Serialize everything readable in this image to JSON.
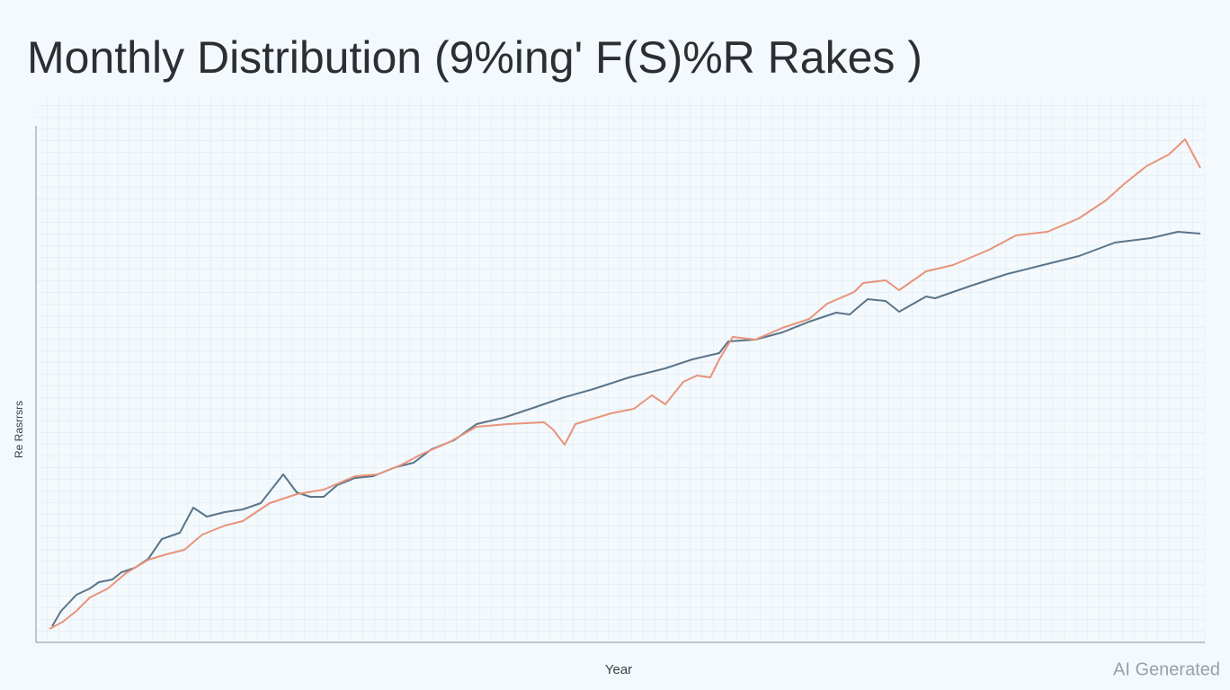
{
  "chart_data": {
    "type": "line",
    "title": "Monthly Distribution (9%ing' F(S)%R Rakes )",
    "x_label": "Year",
    "y_label": "Re Rasrrsrs",
    "watermark": "AI Generated",
    "xlim": [
      0,
      129.5
    ],
    "ylim": [
      0,
      113
    ],
    "grid": true,
    "series": [
      {
        "name": null,
        "color": "#5b7489",
        "x": [
          1.8,
          2.8,
          4.5,
          6,
          7,
          8.5,
          9.5,
          11,
          12.5,
          14,
          16,
          17.5,
          19,
          21,
          23,
          25,
          27.5,
          29,
          30.5,
          32,
          33.5,
          35.5,
          37.5,
          40,
          42,
          44,
          46.5,
          49,
          52,
          55,
          58.5,
          62,
          66,
          70,
          73,
          76,
          77,
          80,
          83,
          86,
          89,
          90.5,
          92.5,
          94.5,
          96,
          99,
          100,
          104,
          108,
          112,
          116,
          120,
          124,
          127,
          129.5
        ],
        "values": [
          3.6,
          7,
          10.6,
          12,
          13.4,
          14,
          15.6,
          16.6,
          18.6,
          23,
          24.4,
          30,
          28,
          29,
          29.6,
          31,
          37.4,
          33.4,
          32.4,
          32.4,
          35,
          36.6,
          37,
          39,
          40,
          43,
          45,
          48.6,
          50,
          52,
          54.4,
          56.4,
          59,
          61,
          63,
          64.4,
          67,
          67.4,
          69,
          71.4,
          73.4,
          73,
          76.4,
          76,
          73.6,
          77,
          76.6,
          79.4,
          82,
          84,
          86,
          89,
          90,
          91.4,
          91
        ]
      },
      {
        "name": null,
        "color": "#e9937a",
        "x": [
          1.5,
          3,
          4.5,
          6,
          8,
          10,
          12.5,
          14.5,
          16.5,
          18.5,
          21,
          23,
          26,
          29,
          32,
          35.5,
          38,
          40.5,
          43,
          46,
          49,
          52.5,
          56.5,
          57.5,
          58.8,
          60,
          64,
          66.5,
          68.5,
          70,
          72,
          73.5,
          75,
          76,
          77.5,
          80,
          83,
          86,
          88,
          91,
          92,
          94.5,
          96,
          99,
          102,
          106,
          109,
          112.5,
          116,
          119,
          121,
          123.5,
          126,
          127.8,
          129.5
        ],
        "values": [
          3,
          4.6,
          7,
          10,
          12,
          15.4,
          18.4,
          19.6,
          20.6,
          24,
          26,
          27,
          31,
          33,
          34,
          37,
          37.4,
          39.4,
          42,
          44.6,
          48,
          48.6,
          49,
          47.4,
          44,
          48.6,
          51,
          52,
          55,
          53,
          58,
          59.4,
          59,
          63,
          68,
          67.4,
          70,
          72,
          75.4,
          78,
          80,
          80.6,
          78.4,
          82.6,
          84,
          87.4,
          90.6,
          91.4,
          94.4,
          98.4,
          102,
          106,
          108.6,
          112,
          105.6
        ]
      }
    ]
  }
}
